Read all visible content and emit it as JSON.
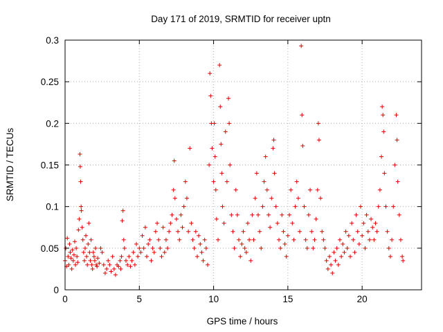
{
  "chart_data": {
    "type": "scatter",
    "title": "Day 171 of 2019, SRMTID for receiver uptn",
    "xlabel": "GPS time / hours",
    "ylabel": "SRMTID / TECUs",
    "xlim": [
      0,
      24
    ],
    "ylim": [
      0,
      0.3
    ],
    "x_ticks": [
      0,
      5,
      10,
      15,
      20
    ],
    "x_tick_labels": [
      "0",
      "5",
      "10",
      "15",
      "20"
    ],
    "y_ticks": [
      0,
      0.05,
      0.1,
      0.15,
      0.2,
      0.25,
      0.3
    ],
    "y_tick_labels": [
      "0",
      "0.05",
      "0.1",
      "0.15",
      "0.2",
      "0.25",
      "0.3"
    ],
    "grid": true,
    "marker": "plus",
    "series": [
      {
        "name": "SRMTID",
        "color": "#e00000",
        "points": [
          [
            0.0,
            0.035
          ],
          [
            0.05,
            0.05
          ],
          [
            0.1,
            0.028
          ],
          [
            0.15,
            0.062
          ],
          [
            0.2,
            0.04
          ],
          [
            0.25,
            0.03
          ],
          [
            0.3,
            0.055
          ],
          [
            0.35,
            0.045
          ],
          [
            0.4,
            0.038
          ],
          [
            0.45,
            0.025
          ],
          [
            0.5,
            0.048
          ],
          [
            0.55,
            0.035
          ],
          [
            0.6,
            0.042
          ],
          [
            0.65,
            0.058
          ],
          [
            0.7,
            0.03
          ],
          [
            0.75,
            0.05
          ],
          [
            0.8,
            0.04
          ],
          [
            0.85,
            0.033
          ],
          [
            0.9,
            0.072
          ],
          [
            0.95,
            0.085
          ],
          [
            1.0,
            0.163
          ],
          [
            1.02,
            0.148
          ],
          [
            1.05,
            0.13
          ],
          [
            1.08,
            0.1
          ],
          [
            1.1,
            0.095
          ],
          [
            1.15,
            0.075
          ],
          [
            1.2,
            0.06
          ],
          [
            1.25,
            0.045
          ],
          [
            1.3,
            0.035
          ],
          [
            1.35,
            0.05
          ],
          [
            1.4,
            0.065
          ],
          [
            1.45,
            0.04
          ],
          [
            1.5,
            0.03
          ],
          [
            1.55,
            0.055
          ],
          [
            1.6,
            0.08
          ],
          [
            1.65,
            0.045
          ],
          [
            1.7,
            0.035
          ],
          [
            1.75,
            0.06
          ],
          [
            1.8,
            0.03
          ],
          [
            1.85,
            0.025
          ],
          [
            1.9,
            0.045
          ],
          [
            1.95,
            0.04
          ],
          [
            2.0,
            0.035
          ],
          [
            2.05,
            0.05
          ],
          [
            2.1,
            0.03
          ],
          [
            2.15,
            0.028
          ],
          [
            2.2,
            0.038
          ],
          [
            2.3,
            0.032
          ],
          [
            2.4,
            0.05
          ],
          [
            2.5,
            0.045
          ],
          [
            2.6,
            0.03
          ],
          [
            2.7,
            0.02
          ],
          [
            2.8,
            0.025
          ],
          [
            2.9,
            0.035
          ],
          [
            3.0,
            0.03
          ],
          [
            3.1,
            0.022
          ],
          [
            3.2,
            0.04
          ],
          [
            3.3,
            0.025
          ],
          [
            3.4,
            0.018
          ],
          [
            3.5,
            0.03
          ],
          [
            3.6,
            0.028
          ],
          [
            3.7,
            0.035
          ],
          [
            3.75,
            0.025
          ],
          [
            3.8,
            0.04
          ],
          [
            3.85,
            0.083
          ],
          [
            3.9,
            0.095
          ],
          [
            3.95,
            0.06
          ],
          [
            4.0,
            0.05
          ],
          [
            4.1,
            0.035
          ],
          [
            4.2,
            0.03
          ],
          [
            4.3,
            0.04
          ],
          [
            4.4,
            0.028
          ],
          [
            4.5,
            0.035
          ],
          [
            4.6,
            0.045
          ],
          [
            4.7,
            0.03
          ],
          [
            4.8,
            0.055
          ],
          [
            4.9,
            0.04
          ],
          [
            5.0,
            0.05
          ],
          [
            5.1,
            0.045
          ],
          [
            5.2,
            0.065
          ],
          [
            5.3,
            0.05
          ],
          [
            5.4,
            0.075
          ],
          [
            5.5,
            0.04
          ],
          [
            5.6,
            0.055
          ],
          [
            5.7,
            0.06
          ],
          [
            5.8,
            0.035
          ],
          [
            5.9,
            0.05
          ],
          [
            6.0,
            0.045
          ],
          [
            6.1,
            0.07
          ],
          [
            6.2,
            0.08
          ],
          [
            6.3,
            0.06
          ],
          [
            6.4,
            0.05
          ],
          [
            6.5,
            0.04
          ],
          [
            6.6,
            0.075
          ],
          [
            6.7,
            0.045
          ],
          [
            6.8,
            0.06
          ],
          [
            6.9,
            0.05
          ],
          [
            7.0,
            0.07
          ],
          [
            7.1,
            0.08
          ],
          [
            7.2,
            0.09
          ],
          [
            7.3,
            0.12
          ],
          [
            7.35,
            0.155
          ],
          [
            7.4,
            0.11
          ],
          [
            7.5,
            0.085
          ],
          [
            7.6,
            0.07
          ],
          [
            7.7,
            0.06
          ],
          [
            7.8,
            0.09
          ],
          [
            7.9,
            0.075
          ],
          [
            8.0,
            0.1
          ],
          [
            8.1,
            0.13
          ],
          [
            8.2,
            0.11
          ],
          [
            8.3,
            0.07
          ],
          [
            8.4,
            0.17
          ],
          [
            8.5,
            0.08
          ],
          [
            8.6,
            0.06
          ],
          [
            8.7,
            0.05
          ],
          [
            8.8,
            0.07
          ],
          [
            8.9,
            0.04
          ],
          [
            9.0,
            0.065
          ],
          [
            9.1,
            0.055
          ],
          [
            9.2,
            0.045
          ],
          [
            9.3,
            0.035
          ],
          [
            9.4,
            0.06
          ],
          [
            9.5,
            0.05
          ],
          [
            9.6,
            0.03
          ],
          [
            9.7,
            0.15
          ],
          [
            9.75,
            0.26
          ],
          [
            9.8,
            0.233
          ],
          [
            9.85,
            0.2
          ],
          [
            9.9,
            0.17
          ],
          [
            10.0,
            0.13
          ],
          [
            10.05,
            0.2
          ],
          [
            10.1,
            0.16
          ],
          [
            10.15,
            0.12
          ],
          [
            10.2,
            0.085
          ],
          [
            10.3,
            0.06
          ],
          [
            10.4,
            0.27
          ],
          [
            10.45,
            0.22
          ],
          [
            10.5,
            0.175
          ],
          [
            10.55,
            0.14
          ],
          [
            10.6,
            0.1
          ],
          [
            10.7,
            0.08
          ],
          [
            10.8,
            0.19
          ],
          [
            10.9,
            0.13
          ],
          [
            11.0,
            0.23
          ],
          [
            11.05,
            0.2
          ],
          [
            11.1,
            0.15
          ],
          [
            11.2,
            0.09
          ],
          [
            11.3,
            0.07
          ],
          [
            11.4,
            0.05
          ],
          [
            11.5,
            0.12
          ],
          [
            11.6,
            0.09
          ],
          [
            11.7,
            0.06
          ],
          [
            11.8,
            0.04
          ],
          [
            11.9,
            0.055
          ],
          [
            12.0,
            0.07
          ],
          [
            12.1,
            0.05
          ],
          [
            12.2,
            0.045
          ],
          [
            12.3,
            0.08
          ],
          [
            12.4,
            0.06
          ],
          [
            12.5,
            0.035
          ],
          [
            12.6,
            0.09
          ],
          [
            12.7,
            0.06
          ],
          [
            12.8,
            0.11
          ],
          [
            12.9,
            0.14
          ],
          [
            13.0,
            0.09
          ],
          [
            13.1,
            0.07
          ],
          [
            13.2,
            0.05
          ],
          [
            13.3,
            0.1
          ],
          [
            13.4,
            0.13
          ],
          [
            13.5,
            0.16
          ],
          [
            13.6,
            0.12
          ],
          [
            13.7,
            0.09
          ],
          [
            13.8,
            0.075
          ],
          [
            13.9,
            0.11
          ],
          [
            14.0,
            0.17
          ],
          [
            14.05,
            0.18
          ],
          [
            14.1,
            0.14
          ],
          [
            14.2,
            0.1
          ],
          [
            14.3,
            0.08
          ],
          [
            14.4,
            0.06
          ],
          [
            14.5,
            0.05
          ],
          [
            14.6,
            0.09
          ],
          [
            14.7,
            0.07
          ],
          [
            14.8,
            0.055
          ],
          [
            14.9,
            0.04
          ],
          [
            15.0,
            0.065
          ],
          [
            15.1,
            0.09
          ],
          [
            15.2,
            0.12
          ],
          [
            15.3,
            0.08
          ],
          [
            15.4,
            0.06
          ],
          [
            15.5,
            0.1
          ],
          [
            15.6,
            0.13
          ],
          [
            15.7,
            0.11
          ],
          [
            15.8,
            0.07
          ],
          [
            15.9,
            0.293
          ],
          [
            15.95,
            0.21
          ],
          [
            16.0,
            0.173
          ],
          [
            16.1,
            0.1
          ],
          [
            16.2,
            0.06
          ],
          [
            16.3,
            0.05
          ],
          [
            16.4,
            0.09
          ],
          [
            16.5,
            0.12
          ],
          [
            16.6,
            0.07
          ],
          [
            16.7,
            0.05
          ],
          [
            16.8,
            0.06
          ],
          [
            16.9,
            0.085
          ],
          [
            17.0,
            0.12
          ],
          [
            17.05,
            0.2
          ],
          [
            17.1,
            0.18
          ],
          [
            17.2,
            0.11
          ],
          [
            17.3,
            0.07
          ],
          [
            17.4,
            0.06
          ],
          [
            17.5,
            0.05
          ],
          [
            17.6,
            0.035
          ],
          [
            17.7,
            0.025
          ],
          [
            17.8,
            0.04
          ],
          [
            17.9,
            0.03
          ],
          [
            18.0,
            0.02
          ],
          [
            18.1,
            0.045
          ],
          [
            18.2,
            0.035
          ],
          [
            18.3,
            0.05
          ],
          [
            18.4,
            0.03
          ],
          [
            18.5,
            0.06
          ],
          [
            18.6,
            0.04
          ],
          [
            18.7,
            0.055
          ],
          [
            18.8,
            0.045
          ],
          [
            18.9,
            0.07
          ],
          [
            19.0,
            0.05
          ],
          [
            19.1,
            0.065
          ],
          [
            19.2,
            0.04
          ],
          [
            19.3,
            0.08
          ],
          [
            19.4,
            0.06
          ],
          [
            19.5,
            0.045
          ],
          [
            19.6,
            0.09
          ],
          [
            19.7,
            0.07
          ],
          [
            19.8,
            0.055
          ],
          [
            19.9,
            0.1
          ],
          [
            20.0,
            0.065
          ],
          [
            20.1,
            0.08
          ],
          [
            20.2,
            0.05
          ],
          [
            20.3,
            0.09
          ],
          [
            20.4,
            0.07
          ],
          [
            20.5,
            0.06
          ],
          [
            20.6,
            0.085
          ],
          [
            20.7,
            0.075
          ],
          [
            20.8,
            0.06
          ],
          [
            20.9,
            0.08
          ],
          [
            21.0,
            0.07
          ],
          [
            21.1,
            0.1
          ],
          [
            21.2,
            0.12
          ],
          [
            21.3,
            0.16
          ],
          [
            21.35,
            0.22
          ],
          [
            21.4,
            0.21
          ],
          [
            21.45,
            0.19
          ],
          [
            21.5,
            0.14
          ],
          [
            21.6,
            0.1
          ],
          [
            21.7,
            0.07
          ],
          [
            21.8,
            0.05
          ],
          [
            21.9,
            0.04
          ],
          [
            22.0,
            0.06
          ],
          [
            22.1,
            0.1
          ],
          [
            22.2,
            0.15
          ],
          [
            22.3,
            0.21
          ],
          [
            22.35,
            0.18
          ],
          [
            22.4,
            0.13
          ],
          [
            22.5,
            0.09
          ],
          [
            22.6,
            0.06
          ],
          [
            22.7,
            0.04
          ],
          [
            22.75,
            0.035
          ]
        ]
      }
    ]
  }
}
